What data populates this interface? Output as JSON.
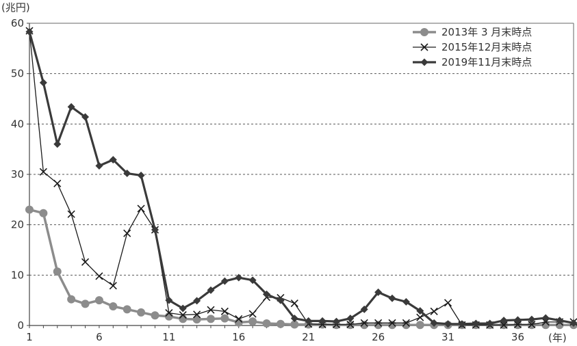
{
  "chart_data": {
    "type": "line",
    "title": "",
    "y_unit_label": "(兆円)",
    "x_unit_label": "(年)",
    "ylim": [
      0,
      60
    ],
    "xlim": [
      1,
      40
    ],
    "y_ticks": [
      0,
      10,
      20,
      30,
      40,
      50,
      60
    ],
    "x_ticks": [
      1,
      6,
      11,
      16,
      21,
      26,
      31,
      36
    ],
    "grid": "horizontal dashed",
    "legend_position": "top-right",
    "x": [
      1,
      2,
      3,
      4,
      5,
      6,
      7,
      8,
      9,
      10,
      11,
      12,
      13,
      14,
      15,
      16,
      17,
      18,
      19,
      20,
      21,
      22,
      23,
      24,
      25,
      26,
      27,
      28,
      29,
      30,
      31,
      32,
      33,
      34,
      35,
      36,
      37,
      38,
      39,
      40
    ],
    "series": [
      {
        "name": "2013年 3 月末時点",
        "color": "#8c8c8c",
        "marker": "circle",
        "values": [
          23,
          22.3,
          10.7,
          5.2,
          4.3,
          5.0,
          3.8,
          3.2,
          2.6,
          2.0,
          1.8,
          1.3,
          1.2,
          1.3,
          1.4,
          0.6,
          0.8,
          0.4,
          0.3,
          0.2,
          0.2,
          0.2,
          0.1,
          0.1,
          0.1,
          0.1,
          0.1,
          0.1,
          0.1,
          0.1,
          0.1,
          0.1,
          0.1,
          0.1,
          0.1,
          0.1,
          0.1,
          0.1,
          0.1,
          0.1
        ]
      },
      {
        "name": "2015年12月末時点",
        "color": "#1a1a1a",
        "marker": "x",
        "values": [
          58.5,
          30.5,
          28.2,
          22.1,
          12.6,
          9.8,
          7.9,
          18.3,
          23.2,
          19.0,
          2.5,
          2.1,
          2.2,
          3.1,
          2.8,
          1.3,
          2.3,
          5.6,
          5.5,
          4.4,
          0.3,
          0.2,
          0.2,
          0.2,
          0.5,
          0.5,
          0.5,
          0.5,
          1.6,
          2.8,
          4.5,
          0.1,
          0.1,
          0.1,
          0.1,
          0.2,
          0.2,
          0.7,
          0.7,
          0.7
        ]
      },
      {
        "name": "2019年11月末時点",
        "color": "#3a3a3a",
        "marker": "diamond",
        "values": [
          58.3,
          48.2,
          36.0,
          43.4,
          41.4,
          31.7,
          32.9,
          30.2,
          29.8,
          19.0,
          5.0,
          3.4,
          4.9,
          7.0,
          8.8,
          9.5,
          9.0,
          6.2,
          5.0,
          1.4,
          0.9,
          0.9,
          0.8,
          1.4,
          3.2,
          6.6,
          5.4,
          4.7,
          2.9,
          0.5,
          0.3,
          0.3,
          0.4,
          0.4,
          1.0,
          1.1,
          1.2,
          1.5,
          1.0,
          0.5
        ]
      }
    ]
  }
}
